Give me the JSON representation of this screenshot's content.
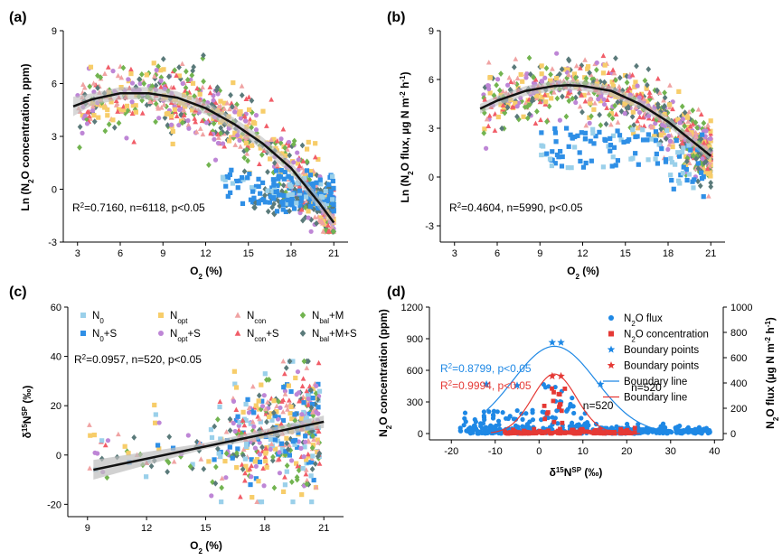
{
  "colors": {
    "N0": "#9ad0ea",
    "N0S": "#2f8fe6",
    "Nopt": "#f7cd6a",
    "NoptS": "#be86d6",
    "Ncon": "#f0a3a3",
    "NconS": "#f15d68",
    "NbalM": "#72b450",
    "NbalMS": "#5a7a7a",
    "fit": "#111111",
    "band": "#bdbdbd",
    "blue": "#1e88e5",
    "red": "#e53935"
  },
  "chart_data": [
    {
      "panel": "(a)",
      "type": "scatter",
      "xlabel_main": "O",
      "xlabel_sub": "2",
      "xlabel_tail": " (%)",
      "ylabel_pre": "Ln (N",
      "ylabel_sub": "2",
      "ylabel_post": "O concentration, ppm)",
      "xlim": [
        2,
        22
      ],
      "ylim": [
        -3,
        9
      ],
      "xticks": [
        "3",
        "6",
        "9",
        "12",
        "15",
        "18",
        "21"
      ],
      "xtick_values": [
        3,
        6,
        9,
        12,
        15,
        18,
        21
      ],
      "yticks": [
        "-3",
        "0",
        "3",
        "6",
        "9"
      ],
      "ytick_values": [
        -3,
        0,
        3,
        6,
        9
      ],
      "stat_r2": "0.7160",
      "stat_rest": ", n=6118, p<0.05",
      "fit": {
        "x": [
          2.7,
          4,
          6,
          8,
          10,
          12,
          14,
          16,
          18,
          20,
          21
        ],
        "y": [
          4.7,
          5.1,
          5.45,
          5.45,
          5.2,
          4.6,
          3.7,
          2.6,
          1.2,
          -0.8,
          -1.9
        ]
      }
    },
    {
      "panel": "(b)",
      "type": "scatter",
      "xlabel_main": "O",
      "xlabel_sub": "2",
      "xlabel_tail": " (%)",
      "ylabel_pre": "Ln (N",
      "ylabel_sub": "2",
      "ylabel_post": "O flux, µg N m",
      "ylabel_sup1": "-2",
      "ylabel_mid": " h",
      "ylabel_sup2": "-1",
      "ylabel_end": ")",
      "xlim": [
        2,
        22
      ],
      "ylim": [
        -4,
        9
      ],
      "xticks": [
        "3",
        "6",
        "9",
        "12",
        "15",
        "18",
        "21"
      ],
      "xtick_values": [
        3,
        6,
        9,
        12,
        15,
        18,
        21
      ],
      "yticks": [
        "-3",
        "0",
        "3",
        "6",
        "9"
      ],
      "ytick_values": [
        -3,
        0,
        3,
        6,
        9
      ],
      "stat_r2": "0.4604",
      "stat_rest": ", n=5990, p<0.05",
      "fit": {
        "x": [
          4.8,
          6,
          8,
          10,
          11,
          12,
          14,
          16,
          18,
          20,
          21
        ],
        "y": [
          4.2,
          4.7,
          5.3,
          5.6,
          5.65,
          5.6,
          5.3,
          4.5,
          3.4,
          2.0,
          1.3
        ]
      }
    },
    {
      "panel": "(c)",
      "type": "scatter",
      "xlabel_main": "O",
      "xlabel_sub": "2",
      "xlabel_tail": " (%)",
      "ylabel_pre": "δ",
      "ylabel_sup": "15",
      "ylabel_mid": "N",
      "ylabel_sup2": "SP",
      "ylabel_post": " (‰)",
      "xlim": [
        8,
        22
      ],
      "ylim": [
        -25,
        60
      ],
      "xticks": [
        "9",
        "12",
        "15",
        "18",
        "21"
      ],
      "xtick_values": [
        9,
        12,
        15,
        18,
        21
      ],
      "yticks": [
        "-20",
        "0",
        "20",
        "40",
        "60"
      ],
      "ytick_values": [
        -20,
        0,
        20,
        40,
        60
      ],
      "stat_r2": "0.0957",
      "stat_rest": ", n=520, p<0.05",
      "fit": {
        "x": [
          9.3,
          21
        ],
        "y": [
          -6,
          13.5
        ]
      },
      "legend": [
        {
          "base": "N",
          "sub": "0",
          "suffix": "",
          "key": "N0",
          "marker": "square"
        },
        {
          "base": "N",
          "sub": "opt",
          "suffix": "",
          "key": "Nopt",
          "marker": "square"
        },
        {
          "base": "N",
          "sub": "con",
          "suffix": "",
          "key": "Ncon",
          "marker": "triangle"
        },
        {
          "base": "N",
          "sub": "bal",
          "suffix": "+M",
          "key": "NbalM",
          "marker": "diamond"
        },
        {
          "base": "N",
          "sub": "0",
          "suffix": "+S",
          "key": "N0S",
          "marker": "square"
        },
        {
          "base": "N",
          "sub": "opt",
          "suffix": "+S",
          "key": "NoptS",
          "marker": "circle"
        },
        {
          "base": "N",
          "sub": "con",
          "suffix": "+S",
          "key": "NconS",
          "marker": "triangle"
        },
        {
          "base": "N",
          "sub": "bal",
          "suffix": "+M+S",
          "key": "NbalMS",
          "marker": "diamond"
        }
      ]
    },
    {
      "panel": "(d)",
      "type": "scatter",
      "xlabel_pre": "δ",
      "xlabel_sup": "15",
      "xlabel_mid": "N",
      "xlabel_sup2": "SP",
      "xlabel_post": " (‰)",
      "ylabel_pre": "N",
      "ylabel_sub": "2",
      "ylabel_post": "O concentration (ppm)",
      "y2label_pre": "N",
      "y2label_sub": "2",
      "y2label_post": "O flux (µg N m",
      "y2label_sup1": "-2",
      "y2label_mid": " h",
      "y2label_sup2": "-1",
      "y2label_end": ")",
      "xlim": [
        -25,
        42
      ],
      "ylim": [
        -60,
        1200
      ],
      "y2lim": [
        -50,
        1000
      ],
      "xticks": [
        "-20",
        "-10",
        "0",
        "10",
        "20",
        "30",
        "40"
      ],
      "xtick_values": [
        -20,
        -10,
        0,
        10,
        20,
        30,
        40
      ],
      "yticks": [
        "0",
        "300",
        "600",
        "900",
        "1200"
      ],
      "ytick_values": [
        0,
        300,
        600,
        900,
        1200
      ],
      "y2ticks": [
        "0",
        "200",
        "400",
        "600",
        "800",
        "1000"
      ],
      "y2tick_values": [
        0,
        200,
        400,
        600,
        800,
        1000
      ],
      "stat_blue_r2": "0.8799",
      "stat_blue_rest": ", p<0.05",
      "stat_red_r2": "0.9994",
      "stat_red_rest": ", p<0.05",
      "n_blue": "n=520",
      "n_red": "n=520",
      "legend": [
        {
          "pre": "N",
          "sub": "2",
          "post": "O flux",
          "key": "blue",
          "marker": "circle"
        },
        {
          "pre": "N",
          "sub": "2",
          "post": "O concentration",
          "key": "red",
          "marker": "square"
        },
        {
          "pre": "Boundary points",
          "sub": "",
          "post": "",
          "key": "blue",
          "marker": "star"
        },
        {
          "pre": "Boundary points",
          "sub": "",
          "post": "",
          "key": "red",
          "marker": "star"
        },
        {
          "pre": "Boundary line",
          "sub": "",
          "post": "",
          "key": "blue",
          "marker": "line"
        },
        {
          "pre": "Boundary line",
          "sub": "",
          "post": "",
          "key": "red",
          "marker": "line"
        }
      ],
      "boundary_line_blue": {
        "center": 3.5,
        "peak_flux": 690,
        "sigma": 9.5,
        "xrange": [
          -12,
          32
        ]
      },
      "boundary_line_red": {
        "center": 3.5,
        "peak_ppm": 565,
        "sigma": 5,
        "xrange": [
          -11,
          23
        ]
      },
      "boundary_points_blue": [
        {
          "x": -12,
          "y2": 390
        },
        {
          "x": -5,
          "y2": 380
        },
        {
          "x": 3,
          "y2": 720
        },
        {
          "x": 5,
          "y2": 720
        },
        {
          "x": 14,
          "y2": 390
        }
      ],
      "boundary_points_red": [
        {
          "x": 3,
          "y": 545
        },
        {
          "x": 5,
          "y": 545
        }
      ]
    }
  ]
}
